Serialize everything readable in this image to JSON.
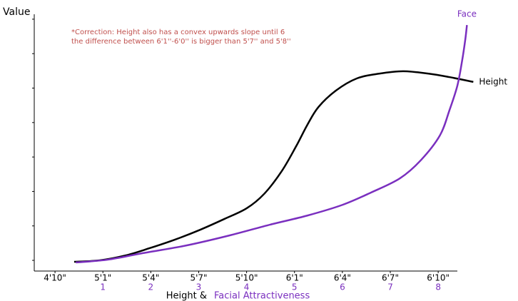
{
  "chart_data": {
    "type": "line",
    "ylabel": "Value",
    "xlabel": "Height &",
    "xlabel_2": "Facial Attractiveness",
    "annotation": [
      "*Correction: Height also has a convex upwards slope until 6",
      "the difference between 6'1''-6'0'' is bigger than 5'7'' and 5'8''"
    ],
    "xlim": [
      56.7,
      83.2
    ],
    "ylim": [
      -0.31,
      7.35
    ],
    "yticks": [
      0,
      1,
      2,
      3,
      4,
      5,
      6,
      7
    ],
    "xticks": [
      {
        "value": 58,
        "label": "4'10\""
      },
      {
        "value": 61,
        "label": "5'1\""
      },
      {
        "value": 64,
        "label": "5'4\""
      },
      {
        "value": 67,
        "label": "5'7\""
      },
      {
        "value": 70,
        "label": "5'10\""
      },
      {
        "value": 73,
        "label": "6'1\""
      },
      {
        "value": 76,
        "label": "6'4\""
      },
      {
        "value": 79,
        "label": "6'7\""
      },
      {
        "value": 82,
        "label": "6'10\""
      }
    ],
    "x2ticks": [
      {
        "value": 61,
        "label": "1"
      },
      {
        "value": 64,
        "label": "2"
      },
      {
        "value": 67,
        "label": "3"
      },
      {
        "value": 70,
        "label": "4"
      },
      {
        "value": 73,
        "label": "5"
      },
      {
        "value": 76,
        "label": "6"
      },
      {
        "value": 79,
        "label": "7"
      },
      {
        "value": 82,
        "label": "8"
      }
    ],
    "series": [
      {
        "name": "Height",
        "color": "#000000",
        "x": [
          59.2,
          60.8,
          62.4,
          63.9,
          65.5,
          67.1,
          68.6,
          70.0,
          71.1,
          72.2,
          73.1,
          73.8,
          74.5,
          75.6,
          76.9,
          78.3,
          79.8,
          81.4,
          82.7,
          84.2
        ],
        "values": [
          -0.04,
          0,
          0.14,
          0.35,
          0.6,
          0.89,
          1.2,
          1.51,
          1.93,
          2.59,
          3.31,
          3.93,
          4.45,
          4.93,
          5.28,
          5.42,
          5.49,
          5.42,
          5.32,
          5.18
        ]
      },
      {
        "name": "Face",
        "color": "#7a2fbf",
        "x": [
          59.3,
          61.3,
          63.5,
          66.2,
          68.9,
          71.5,
          73.8,
          76.0,
          77.8,
          79.6,
          80.9,
          82.1,
          82.7,
          83.2,
          83.5,
          83.7,
          83.8
        ],
        "values": [
          -0.06,
          0.02,
          0.21,
          0.43,
          0.72,
          1.04,
          1.3,
          1.61,
          1.97,
          2.38,
          2.9,
          3.62,
          4.35,
          5.07,
          5.8,
          6.42,
          6.83
        ]
      }
    ]
  }
}
